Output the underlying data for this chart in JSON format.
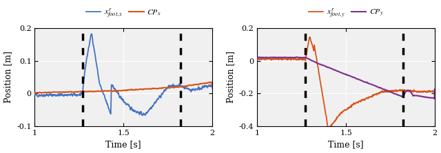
{
  "xlim": [
    1.0,
    2.0
  ],
  "ylim_left": [
    -0.1,
    0.2
  ],
  "ylim_right": [
    -0.4,
    0.2
  ],
  "xlabel": "Time [s]",
  "ylabel": "Position [m]",
  "vlines": [
    1.27,
    1.82
  ],
  "color_blue": "#4472C4",
  "color_orange": "#D95319",
  "color_purple": "#7E2F8E",
  "bg_color": "#F0F0F0",
  "legend_left": [
    "$x^r_{foot,x}$",
    "$CP_x$"
  ],
  "legend_right": [
    "$x^r_{foot,y}$",
    "$CP_y$"
  ],
  "xticks": [
    1.0,
    1.5,
    2.0
  ],
  "xtick_labels": [
    "1",
    "1.5",
    "2"
  ],
  "yticks_left": [
    -0.1,
    0.0,
    0.1,
    0.2
  ],
  "ytick_labels_left": [
    "-0.1",
    "0",
    "0.1",
    "0.2"
  ],
  "yticks_right": [
    -0.4,
    -0.2,
    0.0,
    0.2
  ],
  "ytick_labels_right": [
    "-0.4",
    "-0.2",
    "0",
    "0.2"
  ]
}
